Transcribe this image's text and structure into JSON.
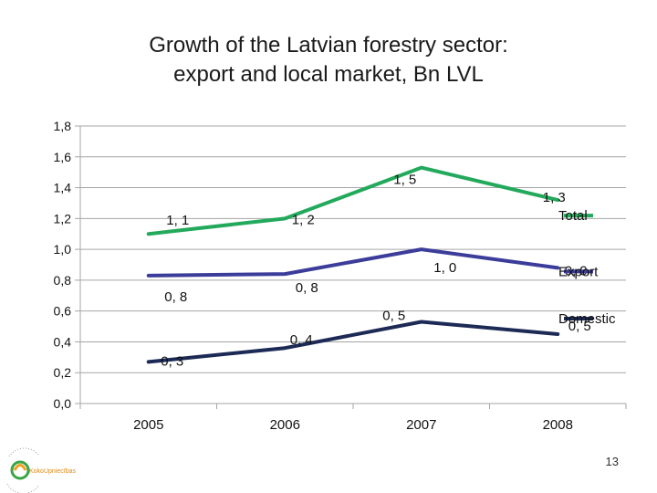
{
  "title_line1": "Growth of the Latvian forestry sector:",
  "title_line2": "export and local market, Bn LVL",
  "slide_number": "13",
  "logo_text": "KokoUpniecības",
  "chart_data": {
    "type": "line",
    "title": "Growth of the Latvian forestry sector: export and local market, Bn LVL",
    "categories": [
      "2005",
      "2006",
      "2007",
      "2008"
    ],
    "ylim": [
      0,
      1.8
    ],
    "yticks": [
      "0,0",
      "0,2",
      "0,4",
      "0,6",
      "0,8",
      "1,0",
      "1,2",
      "1,4",
      "1,6",
      "1,8"
    ],
    "grid": true,
    "series": [
      {
        "name": "Total",
        "color": "#22a95b",
        "values": [
          1.1,
          1.2,
          1.53,
          1.32
        ],
        "labels": [
          "1, 1",
          "1, 2",
          "1, 5",
          "1, 3"
        ]
      },
      {
        "name": "Export",
        "color": "#3c3c9a",
        "values": [
          0.83,
          0.84,
          1.0,
          0.88
        ],
        "labels": [
          "0, 8",
          "0, 8",
          "1, 0",
          "0, 9"
        ]
      },
      {
        "name": "Domestic",
        "color": "#1c2a55",
        "values": [
          0.27,
          0.36,
          0.53,
          0.45
        ],
        "labels": [
          "0, 3",
          "0, 4",
          "0, 5",
          "0, 5"
        ]
      }
    ]
  }
}
